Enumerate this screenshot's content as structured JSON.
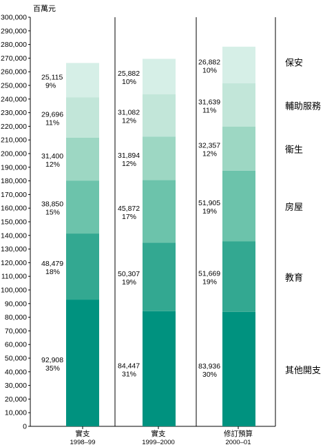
{
  "chart_data": {
    "type": "bar",
    "stacked": true,
    "unit_label": "百萬元",
    "ylim": [
      0,
      300000
    ],
    "y_tick_step": 10000,
    "categories": [
      {
        "line1": "實支",
        "line2": "1998–99"
      },
      {
        "line1": "實支",
        "line2": "1999–2000"
      },
      {
        "line1": "修訂預算",
        "line2": "2000–01"
      }
    ],
    "series": [
      {
        "name": "其他開支",
        "color": "#00927f",
        "values": [
          92908,
          84447,
          83936
        ],
        "percents": [
          "35%",
          "31%",
          "30%"
        ]
      },
      {
        "name": "教育",
        "color": "#33a891",
        "values": [
          48479,
          50307,
          51669
        ],
        "percents": [
          "18%",
          "19%",
          "19%"
        ]
      },
      {
        "name": "房屋",
        "color": "#6cc3ab",
        "values": [
          38850,
          45872,
          51905
        ],
        "percents": [
          "15%",
          "17%",
          "19%"
        ]
      },
      {
        "name": "衞生",
        "color": "#9dd7c3",
        "values": [
          31400,
          31894,
          32357
        ],
        "percents": [
          "12%",
          "12%",
          "12%"
        ]
      },
      {
        "name": "輔助服務",
        "color": "#c2e6d9",
        "values": [
          29696,
          31082,
          31639
        ],
        "percents": [
          "11%",
          "12%",
          "11%"
        ]
      },
      {
        "name": "保安",
        "color": "#d6efe7",
        "values": [
          25115,
          25882,
          26882
        ],
        "percents": [
          "9%",
          "10%",
          "10%"
        ]
      }
    ]
  }
}
